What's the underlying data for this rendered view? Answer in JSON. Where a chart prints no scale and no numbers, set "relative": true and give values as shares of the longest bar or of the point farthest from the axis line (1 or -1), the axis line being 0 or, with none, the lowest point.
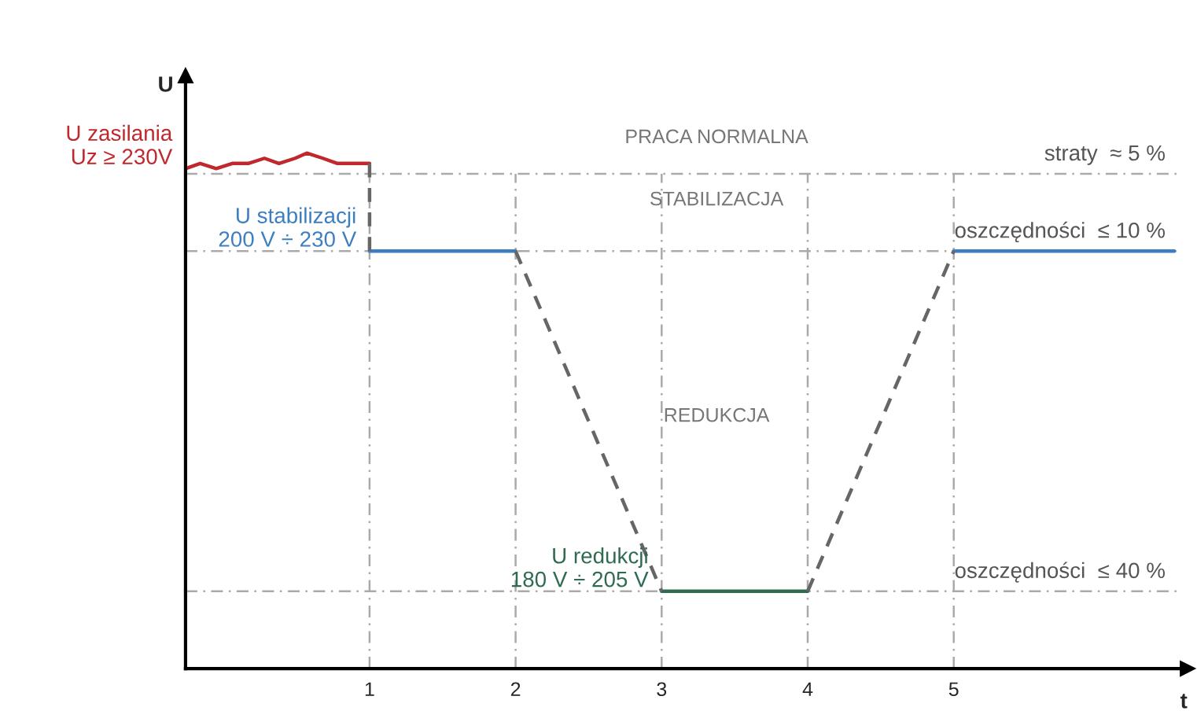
{
  "chart_data": {
    "type": "line",
    "relative": true,
    "xlabel": "t",
    "ylabel": "U",
    "xlim": [
      -0.26,
      6.6
    ],
    "xticks": [
      1,
      2,
      3,
      4,
      5
    ],
    "series": [
      {
        "name": "U zasilania\nUz ≥ 230V",
        "color": "#c0282d",
        "x": [
          -0.26,
          -0.16,
          -0.05,
          0.06,
          0.17,
          0.28,
          0.38,
          0.49,
          0.57,
          0.68,
          0.78,
          0.92,
          1
        ],
        "values": [
          0.97,
          0.98,
          0.97,
          0.98,
          0.98,
          0.99,
          0.98,
          0.99,
          1,
          0.99,
          0.98,
          0.98,
          0.98
        ]
      },
      {
        "name": "U stabilizacji\n200 V ÷ 230 V",
        "color": "#3c7fc1",
        "x": [
          1,
          2,
          3.5,
          5,
          6.51
        ],
        "values": [
          0.81,
          0.81,
          null,
          0.81,
          0.81
        ]
      },
      {
        "name": "U redukcji\n180 V ÷ 205 V",
        "color": "#2e6b4f",
        "x": [
          3,
          4
        ],
        "values": [
          0.15,
          0.15
        ]
      },
      {
        "color": "#666666",
        "line_style": "dashed",
        "x": [
          1,
          1,
          1.5,
          2,
          3,
          3.5,
          4,
          5
        ],
        "values": [
          0.98,
          0.81,
          null,
          0.81,
          0.15,
          null,
          0.15,
          0.81
        ]
      }
    ],
    "ref_lines": [
      {
        "axis": "y",
        "value": 0.96,
        "label": "straty  ≈ 5 %"
      },
      {
        "axis": "y",
        "value": 0.81,
        "label": "oszczędności  ≤ 10 %"
      },
      {
        "axis": "y",
        "value": 0.15,
        "label": "oszczędności  ≤ 40 %"
      },
      {
        "axis": "x",
        "value": 1
      },
      {
        "axis": "x",
        "value": 2
      },
      {
        "axis": "x",
        "value": 3
      },
      {
        "axis": "x",
        "value": 4
      },
      {
        "axis": "x",
        "value": 5
      }
    ],
    "annotations": [
      "PRACA NORMALNA",
      "STABILIZACJA",
      "REDUKCJA"
    ],
    "grid": false,
    "legend": false
  }
}
